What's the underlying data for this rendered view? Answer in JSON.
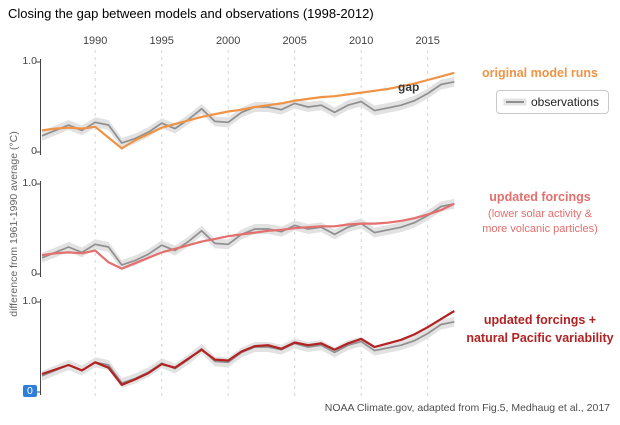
{
  "title": "Closing the gap between models and observations (1998-2012)",
  "y_axis_label": "difference from 1961-1990 average (°C)",
  "caption": "NOAA Climate.gov, adapted from Fig.5, Medhaug et al., 2017",
  "chart_data": {
    "type": "line",
    "x": [
      1986,
      1987,
      1988,
      1989,
      1990,
      1991,
      1992,
      1993,
      1994,
      1995,
      1996,
      1997,
      1998,
      1999,
      2000,
      2001,
      2002,
      2003,
      2004,
      2005,
      2006,
      2007,
      2008,
      2009,
      2010,
      2011,
      2012,
      2013,
      2014,
      2015,
      2016,
      2017
    ],
    "x_ticks": [
      1990,
      1995,
      2000,
      2005,
      2010,
      2015
    ],
    "ylim": [
      0,
      1.0
    ],
    "y_tick_labels": [
      "1.0",
      "0"
    ],
    "grid": "vertical-dashed",
    "legend_position": "right",
    "observations_label": "observations",
    "band_halfwidth": 0.055,
    "observations": [
      0.18,
      0.24,
      0.3,
      0.24,
      0.33,
      0.3,
      0.1,
      0.15,
      0.22,
      0.32,
      0.26,
      0.36,
      0.48,
      0.34,
      0.33,
      0.44,
      0.5,
      0.5,
      0.47,
      0.54,
      0.5,
      0.52,
      0.44,
      0.52,
      0.56,
      0.46,
      0.49,
      0.52,
      0.57,
      0.65,
      0.75,
      0.78
    ],
    "colors": {
      "observations": "#8f8f8f",
      "band": "#e2e2e2",
      "grid": "#d5d5d5",
      "axis": "#444444",
      "selection_blue": "#2f7ed8"
    },
    "panels": [
      {
        "legend": "original model runs",
        "annotation": "gap",
        "color": "#ef9446",
        "values": [
          0.24,
          0.26,
          0.27,
          0.26,
          0.28,
          0.16,
          0.04,
          0.13,
          0.2,
          0.27,
          0.31,
          0.35,
          0.39,
          0.42,
          0.45,
          0.47,
          0.5,
          0.52,
          0.54,
          0.57,
          0.59,
          0.61,
          0.62,
          0.64,
          0.66,
          0.68,
          0.7,
          0.73,
          0.76,
          0.8,
          0.84,
          0.88
        ]
      },
      {
        "legend": "updated forcings",
        "legend_sub1": "(lower solar activity &",
        "legend_sub2": "more volcanic particles)",
        "color": "#e36f6e",
        "values": [
          0.21,
          0.23,
          0.24,
          0.23,
          0.26,
          0.13,
          0.06,
          0.12,
          0.18,
          0.24,
          0.28,
          0.32,
          0.36,
          0.39,
          0.42,
          0.44,
          0.46,
          0.48,
          0.49,
          0.51,
          0.52,
          0.53,
          0.53,
          0.55,
          0.56,
          0.56,
          0.57,
          0.59,
          0.62,
          0.66,
          0.71,
          0.78
        ]
      },
      {
        "legend": "updated forcings +",
        "legend_line2": "natural Pacific variability",
        "color": "#b22222",
        "zero_tick_selected": true,
        "values": [
          0.2,
          0.25,
          0.3,
          0.24,
          0.33,
          0.27,
          0.08,
          0.14,
          0.21,
          0.31,
          0.27,
          0.37,
          0.47,
          0.36,
          0.35,
          0.45,
          0.51,
          0.52,
          0.48,
          0.55,
          0.52,
          0.54,
          0.47,
          0.54,
          0.59,
          0.5,
          0.54,
          0.58,
          0.64,
          0.72,
          0.81,
          0.9
        ]
      }
    ]
  }
}
